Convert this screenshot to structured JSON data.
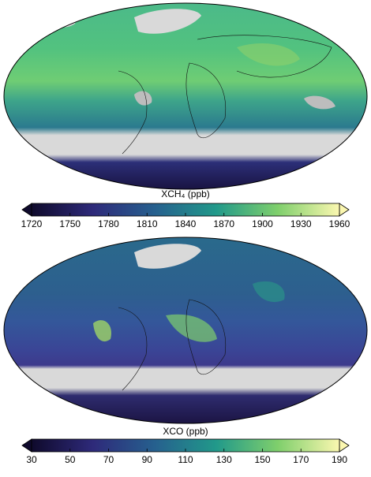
{
  "panels": [
    {
      "title": "XCH₄ (ppb)",
      "colorbar_ticks": [
        1720,
        1750,
        1780,
        1810,
        1840,
        1870,
        1900,
        1930,
        1960
      ]
    },
    {
      "title": "XCO (ppb)",
      "colorbar_ticks": [
        30,
        50,
        70,
        90,
        110,
        130,
        150,
        170,
        190
      ]
    }
  ]
}
